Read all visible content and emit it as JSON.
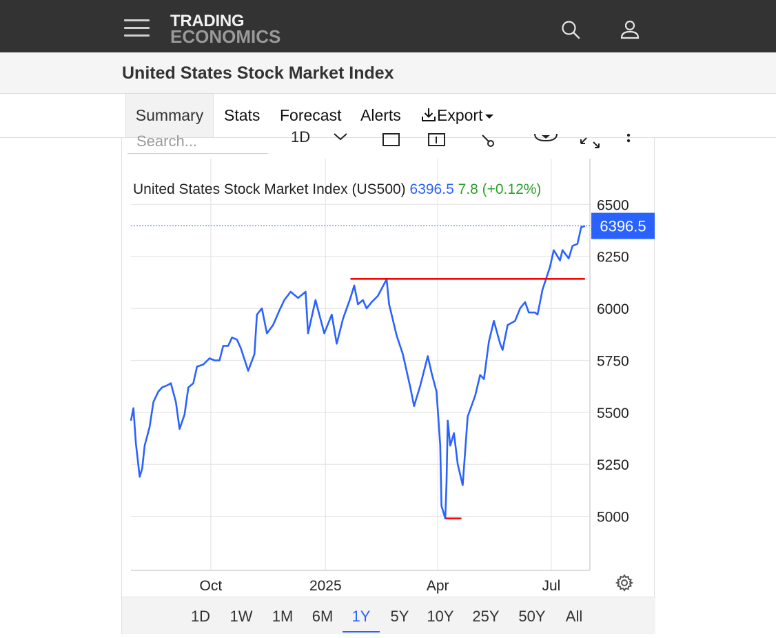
{
  "header": {
    "logo_line1": "TRADING",
    "logo_line2": "ECONOMICS",
    "icons": [
      "menu-icon",
      "search-icon",
      "user-icon"
    ]
  },
  "page": {
    "title": "United States Stock Market Index"
  },
  "tabs": [
    {
      "label": "Summary",
      "active": true
    },
    {
      "label": "Stats"
    },
    {
      "label": "Forecast"
    },
    {
      "label": "Alerts"
    },
    {
      "label": "Export",
      "icon": "download-icon"
    }
  ],
  "toolbar": {
    "search_placeholder": "Search...",
    "interval_label": "1D"
  },
  "quote": {
    "name": "United States Stock Market Index (US500)",
    "price": "6396.5",
    "change": "7.8 (+0.12%)",
    "last_label": "6396.5"
  },
  "colors": {
    "line": "#2962ff",
    "price": "#2962ff",
    "change_up": "#2ca02c",
    "annotation": "#ff0000",
    "header_bg": "#333333"
  },
  "ranges": [
    {
      "label": "1D"
    },
    {
      "label": "1W"
    },
    {
      "label": "1M"
    },
    {
      "label": "6M"
    },
    {
      "label": "1Y",
      "active": true
    },
    {
      "label": "5Y"
    },
    {
      "label": "10Y"
    },
    {
      "label": "25Y"
    },
    {
      "label": "50Y"
    },
    {
      "label": "All"
    }
  ],
  "chart_data": {
    "type": "line",
    "title": "United States Stock Market Index (US500)",
    "xlabel": "",
    "ylabel": "",
    "ylim": [
      4740,
      6720
    ],
    "y_ticks": [
      5000,
      5250,
      5500,
      5750,
      6000,
      6250,
      6500
    ],
    "x_ticks": [
      {
        "label": "Oct",
        "x": "2024-10-01"
      },
      {
        "label": "2025",
        "x": "2025-01-01"
      },
      {
        "label": "Apr",
        "x": "2025-04-01"
      },
      {
        "label": "Jul",
        "x": "2025-07-01"
      }
    ],
    "grid": true,
    "last_value": 6396.5,
    "series": [
      {
        "color": "#2962ff",
        "points": [
          [
            "2024-07-29",
            5460
          ],
          [
            "2024-07-31",
            5520
          ],
          [
            "2024-08-02",
            5350
          ],
          [
            "2024-08-05",
            5190
          ],
          [
            "2024-08-07",
            5230
          ],
          [
            "2024-08-09",
            5340
          ],
          [
            "2024-08-13",
            5430
          ],
          [
            "2024-08-16",
            5550
          ],
          [
            "2024-08-20",
            5600
          ],
          [
            "2024-08-23",
            5620
          ],
          [
            "2024-08-27",
            5630
          ],
          [
            "2024-08-30",
            5640
          ],
          [
            "2024-09-03",
            5550
          ],
          [
            "2024-09-06",
            5420
          ],
          [
            "2024-09-10",
            5490
          ],
          [
            "2024-09-13",
            5620
          ],
          [
            "2024-09-17",
            5640
          ],
          [
            "2024-09-20",
            5720
          ],
          [
            "2024-09-25",
            5730
          ],
          [
            "2024-09-30",
            5760
          ],
          [
            "2024-10-04",
            5750
          ],
          [
            "2024-10-08",
            5750
          ],
          [
            "2024-10-11",
            5820
          ],
          [
            "2024-10-15",
            5820
          ],
          [
            "2024-10-18",
            5860
          ],
          [
            "2024-10-22",
            5850
          ],
          [
            "2024-10-25",
            5810
          ],
          [
            "2024-10-31",
            5700
          ],
          [
            "2024-11-05",
            5780
          ],
          [
            "2024-11-07",
            5970
          ],
          [
            "2024-11-11",
            6000
          ],
          [
            "2024-11-15",
            5880
          ],
          [
            "2024-11-20",
            5920
          ],
          [
            "2024-11-25",
            5990
          ],
          [
            "2024-11-29",
            6040
          ],
          [
            "2024-12-04",
            6080
          ],
          [
            "2024-12-10",
            6050
          ],
          [
            "2024-12-16",
            6080
          ],
          [
            "2024-12-18",
            5880
          ],
          [
            "2024-12-24",
            6040
          ],
          [
            "2024-12-31",
            5880
          ],
          [
            "2025-01-06",
            5970
          ],
          [
            "2025-01-10",
            5830
          ],
          [
            "2025-01-15",
            5950
          ],
          [
            "2025-01-21",
            6050
          ],
          [
            "2025-01-24",
            6110
          ],
          [
            "2025-01-27",
            6020
          ],
          [
            "2025-01-31",
            6040
          ],
          [
            "2025-02-03",
            6000
          ],
          [
            "2025-02-07",
            6030
          ],
          [
            "2025-02-12",
            6060
          ],
          [
            "2025-02-19",
            6140
          ],
          [
            "2025-02-21",
            6020
          ],
          [
            "2025-02-27",
            5870
          ],
          [
            "2025-03-04",
            5780
          ],
          [
            "2025-03-10",
            5620
          ],
          [
            "2025-03-13",
            5530
          ],
          [
            "2025-03-18",
            5630
          ],
          [
            "2025-03-24",
            5770
          ],
          [
            "2025-03-27",
            5690
          ],
          [
            "2025-03-31",
            5600
          ],
          [
            "2025-04-03",
            5340
          ],
          [
            "2025-04-04",
            5050
          ],
          [
            "2025-04-07",
            4990
          ],
          [
            "2025-04-08",
            5160
          ],
          [
            "2025-04-09",
            5460
          ],
          [
            "2025-04-11",
            5340
          ],
          [
            "2025-04-14",
            5400
          ],
          [
            "2025-04-17",
            5250
          ],
          [
            "2025-04-21",
            5150
          ],
          [
            "2025-04-25",
            5480
          ],
          [
            "2025-05-01",
            5580
          ],
          [
            "2025-05-05",
            5680
          ],
          [
            "2025-05-08",
            5660
          ],
          [
            "2025-05-12",
            5840
          ],
          [
            "2025-05-16",
            5940
          ],
          [
            "2025-05-21",
            5830
          ],
          [
            "2025-05-23",
            5800
          ],
          [
            "2025-05-27",
            5920
          ],
          [
            "2025-06-02",
            5940
          ],
          [
            "2025-06-06",
            6000
          ],
          [
            "2025-06-10",
            6030
          ],
          [
            "2025-06-13",
            5980
          ],
          [
            "2025-06-18",
            5980
          ],
          [
            "2025-06-20",
            5970
          ],
          [
            "2025-06-24",
            6090
          ],
          [
            "2025-06-30",
            6200
          ],
          [
            "2025-07-03",
            6280
          ],
          [
            "2025-07-08",
            6230
          ],
          [
            "2025-07-10",
            6280
          ],
          [
            "2025-07-15",
            6240
          ],
          [
            "2025-07-18",
            6300
          ],
          [
            "2025-07-22",
            6310
          ],
          [
            "2025-07-25",
            6390
          ],
          [
            "2025-07-28",
            6396.5
          ]
        ]
      }
    ],
    "annotations": [
      {
        "type": "horizontal_line",
        "color": "#ff0000",
        "y": 6142,
        "from": "2025-01-21",
        "to": "2025-07-28"
      },
      {
        "type": "segment",
        "color": "#ff0000",
        "y": 4990,
        "from": "2025-04-07",
        "to": "2025-04-20"
      }
    ]
  }
}
